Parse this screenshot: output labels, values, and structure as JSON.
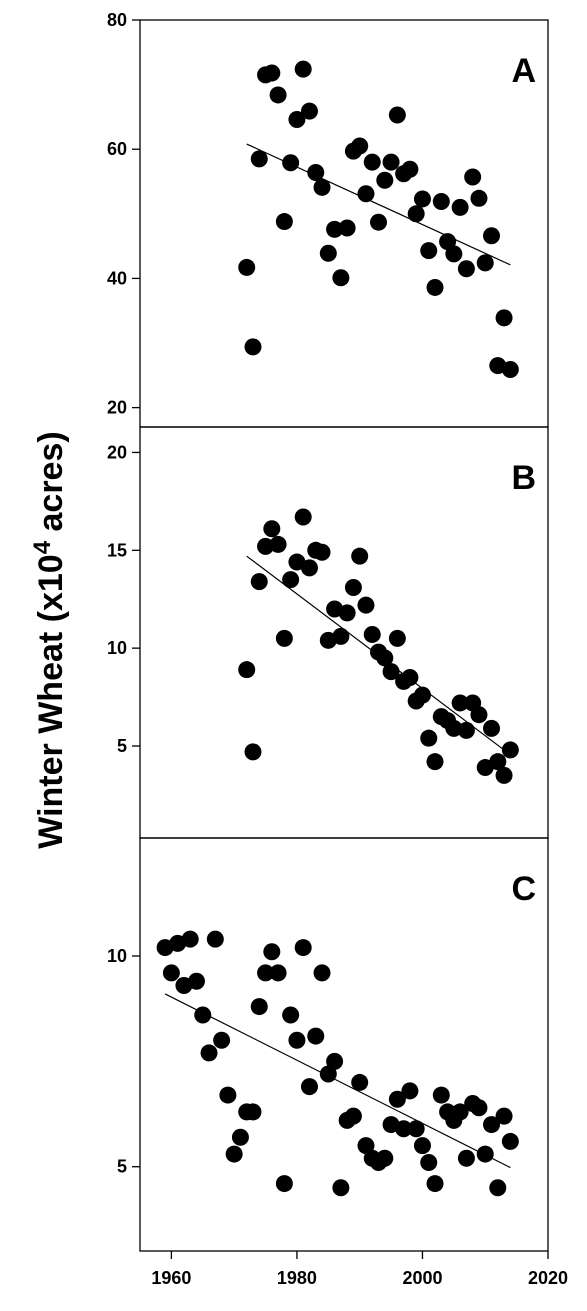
{
  "chart_data": {
    "type": "scatter",
    "ylabel": "Winter Wheat (x10",
    "ylabel_sup": "4",
    "ylabel_tail": " acres)",
    "xlim": [
      1955,
      2020
    ],
    "xticks": [
      1960,
      1980,
      2000,
      2020
    ],
    "xtick_labels": [
      "1960",
      "1980",
      "2000",
      "2020"
    ],
    "marker_color": "#000000",
    "panels": [
      {
        "label": "A",
        "ylim": [
          17,
          80
        ],
        "yticks": [
          20,
          40,
          60,
          80
        ],
        "ytick_labels": [
          "20",
          "40",
          "60",
          "80"
        ],
        "trend": {
          "x": [
            1972,
            2014
          ],
          "y": [
            60.8,
            42.1
          ]
        },
        "points": [
          [
            1972,
            41.7
          ],
          [
            1973,
            29.4
          ],
          [
            1974,
            58.5
          ],
          [
            1975,
            71.5
          ],
          [
            1976,
            71.8
          ],
          [
            1977,
            68.4
          ],
          [
            1978,
            48.8
          ],
          [
            1979,
            57.9
          ],
          [
            1980,
            64.6
          ],
          [
            1981,
            72.4
          ],
          [
            1982,
            65.9
          ],
          [
            1983,
            56.4
          ],
          [
            1984,
            54.1
          ],
          [
            1985,
            43.9
          ],
          [
            1986,
            47.6
          ],
          [
            1987,
            40.1
          ],
          [
            1988,
            47.8
          ],
          [
            1989,
            59.7
          ],
          [
            1990,
            60.5
          ],
          [
            1991,
            53.1
          ],
          [
            1992,
            58.0
          ],
          [
            1993,
            48.7
          ],
          [
            1994,
            55.2
          ],
          [
            1995,
            58.0
          ],
          [
            1996,
            65.3
          ],
          [
            1997,
            56.2
          ],
          [
            1998,
            56.9
          ],
          [
            1999,
            50.0
          ],
          [
            2000,
            52.3
          ],
          [
            2001,
            44.3
          ],
          [
            2002,
            38.6
          ],
          [
            2003,
            51.9
          ],
          [
            2004,
            45.7
          ],
          [
            2005,
            43.8
          ],
          [
            2006,
            51.0
          ],
          [
            2007,
            41.5
          ],
          [
            2008,
            55.7
          ],
          [
            2009,
            52.4
          ],
          [
            2010,
            42.4
          ],
          [
            2011,
            46.6
          ],
          [
            2012,
            26.5
          ],
          [
            2013,
            33.9
          ],
          [
            2014,
            25.9
          ]
        ]
      },
      {
        "label": "B",
        "ylim": [
          0.3,
          21.3
        ],
        "yticks": [
          5,
          10,
          15,
          20
        ],
        "ytick_labels": [
          "5",
          "10",
          "15",
          "20"
        ],
        "trend": {
          "x": [
            1972,
            2013
          ],
          "y": [
            14.7,
            4.8
          ]
        },
        "points": [
          [
            1972,
            8.9
          ],
          [
            1973,
            4.7
          ],
          [
            1974,
            13.4
          ],
          [
            1975,
            15.2
          ],
          [
            1976,
            16.1
          ],
          [
            1977,
            15.3
          ],
          [
            1978,
            10.5
          ],
          [
            1979,
            13.5
          ],
          [
            1980,
            14.4
          ],
          [
            1981,
            16.7
          ],
          [
            1982,
            14.1
          ],
          [
            1983,
            15.0
          ],
          [
            1984,
            14.9
          ],
          [
            1985,
            10.4
          ],
          [
            1986,
            12.0
          ],
          [
            1987,
            10.6
          ],
          [
            1988,
            11.8
          ],
          [
            1989,
            13.1
          ],
          [
            1990,
            14.7
          ],
          [
            1991,
            12.2
          ],
          [
            1992,
            10.7
          ],
          [
            1993,
            9.8
          ],
          [
            1994,
            9.5
          ],
          [
            1995,
            8.8
          ],
          [
            1996,
            10.5
          ],
          [
            1997,
            8.3
          ],
          [
            1998,
            8.5
          ],
          [
            1999,
            7.3
          ],
          [
            2000,
            7.6
          ],
          [
            2001,
            5.4
          ],
          [
            2002,
            4.2
          ],
          [
            2003,
            6.5
          ],
          [
            2004,
            6.3
          ],
          [
            2005,
            5.9
          ],
          [
            2006,
            7.2
          ],
          [
            2007,
            5.8
          ],
          [
            2008,
            7.2
          ],
          [
            2009,
            6.6
          ],
          [
            2010,
            3.9
          ],
          [
            2011,
            5.9
          ],
          [
            2012,
            4.2
          ],
          [
            2013,
            3.5
          ],
          [
            2014,
            4.8
          ]
        ]
      },
      {
        "label": "C",
        "ylim": [
          3.0,
          12.8
        ],
        "yticks": [
          5,
          10
        ],
        "ytick_labels": [
          "5",
          "10"
        ],
        "trend": {
          "x": [
            1959,
            2014
          ],
          "y": [
            9.1,
            4.98
          ]
        },
        "points": [
          [
            1959,
            10.2
          ],
          [
            1960,
            9.6
          ],
          [
            1961,
            10.3
          ],
          [
            1962,
            9.3
          ],
          [
            1963,
            10.4
          ],
          [
            1964,
            9.4
          ],
          [
            1965,
            8.6
          ],
          [
            1966,
            7.7
          ],
          [
            1967,
            10.4
          ],
          [
            1968,
            8.0
          ],
          [
            1969,
            6.7
          ],
          [
            1970,
            5.3
          ],
          [
            1971,
            5.7
          ],
          [
            1972,
            6.3
          ],
          [
            1973,
            6.3
          ],
          [
            1974,
            8.8
          ],
          [
            1975,
            9.6
          ],
          [
            1976,
            10.1
          ],
          [
            1977,
            9.6
          ],
          [
            1978,
            4.6
          ],
          [
            1979,
            8.6
          ],
          [
            1980,
            8.0
          ],
          [
            1981,
            10.2
          ],
          [
            1982,
            6.9
          ],
          [
            1983,
            8.1
          ],
          [
            1984,
            9.6
          ],
          [
            1985,
            7.2
          ],
          [
            1986,
            7.5
          ],
          [
            1987,
            4.5
          ],
          [
            1988,
            6.1
          ],
          [
            1989,
            6.2
          ],
          [
            1990,
            7.0
          ],
          [
            1991,
            5.5
          ],
          [
            1992,
            5.2
          ],
          [
            1993,
            5.1
          ],
          [
            1994,
            5.2
          ],
          [
            1995,
            6.0
          ],
          [
            1996,
            6.6
          ],
          [
            1997,
            5.9
          ],
          [
            1998,
            6.8
          ],
          [
            1999,
            5.9
          ],
          [
            2000,
            5.5
          ],
          [
            2001,
            5.1
          ],
          [
            2002,
            4.6
          ],
          [
            2003,
            6.7
          ],
          [
            2004,
            6.3
          ],
          [
            2005,
            6.1
          ],
          [
            2006,
            6.3
          ],
          [
            2007,
            5.2
          ],
          [
            2008,
            6.5
          ],
          [
            2009,
            6.4
          ],
          [
            2010,
            5.3
          ],
          [
            2011,
            6.0
          ],
          [
            2012,
            4.5
          ],
          [
            2013,
            6.2
          ],
          [
            2014,
            5.6
          ]
        ]
      }
    ]
  }
}
